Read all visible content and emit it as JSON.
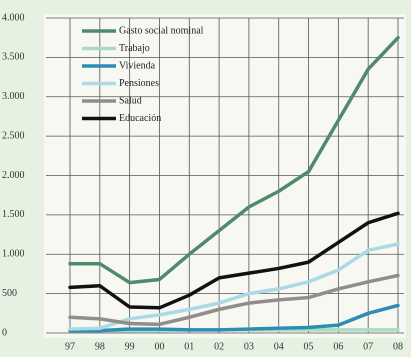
{
  "chart_data": {
    "type": "line",
    "categories": [
      "97",
      "98",
      "99",
      "00",
      "01",
      "02",
      "03",
      "04",
      "05",
      "06",
      "07",
      "08"
    ],
    "series": [
      {
        "name": "Gasto social nominal",
        "color": "#4f8a6e",
        "values": [
          880,
          880,
          640,
          680,
          1000,
          1300,
          1600,
          1800,
          2050,
          2700,
          3350,
          3750
        ]
      },
      {
        "name": "Trabajo",
        "color": "#a9dcc0",
        "values": [
          30,
          30,
          30,
          30,
          40,
          40,
          40,
          40,
          40,
          40,
          40,
          40
        ]
      },
      {
        "name": "Vivienda",
        "color": "#2d8db3",
        "values": [
          30,
          30,
          50,
          50,
          40,
          40,
          50,
          60,
          70,
          100,
          250,
          350
        ]
      },
      {
        "name": "Pensiones",
        "color": "#acd9e6",
        "values": [
          50,
          60,
          180,
          230,
          300,
          380,
          500,
          560,
          650,
          800,
          1050,
          1130
        ]
      },
      {
        "name": "Salud",
        "color": "#948b8b",
        "values": [
          200,
          180,
          120,
          110,
          200,
          300,
          380,
          420,
          450,
          560,
          650,
          730
        ]
      },
      {
        "name": "Educación",
        "color": "#111111",
        "values": [
          580,
          600,
          330,
          320,
          480,
          700,
          760,
          820,
          900,
          1150,
          1400,
          1520
        ]
      }
    ],
    "ylim": [
      0,
      4000
    ],
    "yticks": [
      0,
      500,
      {
        "value": 1000,
        "label": "1.000"
      },
      {
        "value": 1500,
        "label": "1.500"
      },
      {
        "value": 2000,
        "label": "2.000"
      },
      {
        "value": 2500,
        "label": "2.500"
      },
      {
        "value": 3000,
        "label": "3.000"
      },
      {
        "value": 3500,
        "label": "3.500"
      },
      {
        "value": 4000,
        "label": "4.000"
      }
    ],
    "grid": true,
    "legend": "top-left"
  }
}
